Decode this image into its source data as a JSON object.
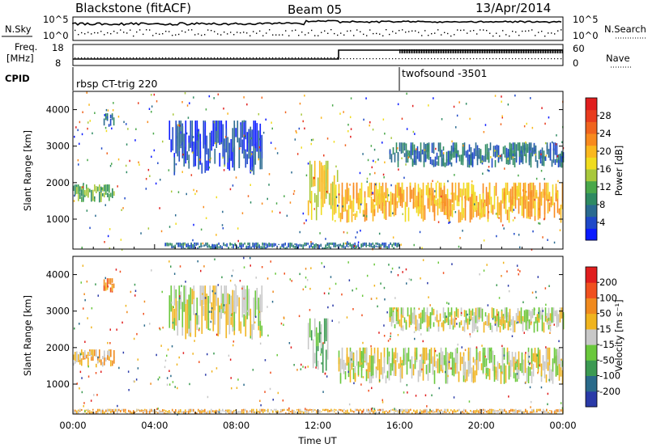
{
  "header": {
    "station": "Blackstone (fitACF)",
    "beam": "Beam 05",
    "date": "13/Apr/2014"
  },
  "noise_panel": {
    "left_label": "N.Sky",
    "right_label": "N.Search",
    "ticks": [
      "10^5",
      "10^0"
    ]
  },
  "freq_panel": {
    "left_label_line1": "Freq.",
    "left_label_line2": "[MHz]",
    "left_ticks": [
      "18",
      "8"
    ],
    "right_label": "Nave",
    "right_ticks": [
      "60",
      "0"
    ]
  },
  "cpid_panel": {
    "label": "CPID",
    "programs": [
      {
        "name": "rbsp CT-trig 220",
        "start_hour": 0
      },
      {
        "name": "twofsound -3501",
        "start_hour": 16
      }
    ]
  },
  "colorbars": {
    "power": {
      "label": "Power [dB]",
      "ticks": [
        "28",
        "24",
        "20",
        "16",
        "12",
        "8",
        "4"
      ],
      "colors": [
        "#0a1aff",
        "#1e48c8",
        "#2a6a90",
        "#2e8a62",
        "#4aa84a",
        "#a8c83c",
        "#f0dc1e",
        "#fab81e",
        "#f88a1e",
        "#f0641e",
        "#e83c1e",
        "#e01e1e"
      ]
    },
    "velocity": {
      "label": "Velocity [m s⁻¹]",
      "ticks": [
        "200",
        "100",
        "50",
        "15",
        "-15",
        "-50",
        "-100",
        "-200"
      ],
      "colors": [
        "#2a3aa8",
        "#2a6a8a",
        "#3c9a52",
        "#6ac83c",
        "#c8c8c8",
        "#f0b41e",
        "#f08a1e",
        "#f0501e",
        "#e01e1e"
      ]
    }
  },
  "chart_data": [
    {
      "type": "heatmap",
      "name": "power",
      "xlabel": "",
      "ylabel": "Slant Range [km]",
      "x_ticks": [
        "00:00",
        "04:00",
        "08:00",
        "12:00",
        "16:00",
        "20:00",
        "00:00"
      ],
      "y_ticks": [
        "1000",
        "2000",
        "3000",
        "4000"
      ],
      "xlim": [
        0,
        24
      ],
      "ylim": [
        180,
        4500
      ],
      "regions": [
        {
          "t0": 0.0,
          "t1": 2.0,
          "r0": 1450,
          "r1": 1950,
          "level": 4
        },
        {
          "t0": 1.5,
          "t1": 2.0,
          "r0": 3500,
          "r1": 3900,
          "level": 2
        },
        {
          "t0": 4.7,
          "t1": 9.3,
          "r0": 2200,
          "r1": 3700,
          "level": 1
        },
        {
          "t0": 11.5,
          "t1": 13.0,
          "r0": 900,
          "r1": 2600,
          "level": 6
        },
        {
          "t0": 13.0,
          "t1": 24.0,
          "r0": 900,
          "r1": 2000,
          "level": 7
        },
        {
          "t0": 15.5,
          "t1": 24.0,
          "r0": 2400,
          "r1": 3100,
          "level": 2
        },
        {
          "t0": 4.5,
          "t1": 16.0,
          "r0": 180,
          "r1": 360,
          "level": 2
        }
      ]
    },
    {
      "type": "heatmap",
      "name": "velocity",
      "xlabel": "Time UT",
      "ylabel": "Slant Range [km]",
      "x_ticks": [
        "00:00",
        "04:00",
        "08:00",
        "12:00",
        "16:00",
        "20:00",
        "00:00"
      ],
      "y_ticks": [
        "1000",
        "2000",
        "3000",
        "4000"
      ],
      "xlim": [
        0,
        24
      ],
      "ylim": [
        180,
        4500
      ],
      "regions": [
        {
          "t0": 0.0,
          "t1": 2.0,
          "r0": 1450,
          "r1": 1950,
          "level": 5
        },
        {
          "t0": 1.5,
          "t1": 2.0,
          "r0": 3500,
          "r1": 3900,
          "level": 6
        },
        {
          "t0": 4.7,
          "t1": 9.3,
          "r0": 2200,
          "r1": 3700,
          "level": 4
        },
        {
          "t0": 11.5,
          "t1": 12.5,
          "r0": 1200,
          "r1": 2800,
          "level": 3
        },
        {
          "t0": 13.0,
          "t1": 24.0,
          "r0": 1000,
          "r1": 2000,
          "level": 4
        },
        {
          "t0": 15.5,
          "t1": 24.0,
          "r0": 2400,
          "r1": 3100,
          "level": 4
        },
        {
          "t0": 0.0,
          "t1": 24.0,
          "r0": 180,
          "r1": 320,
          "level": 5
        }
      ]
    }
  ]
}
